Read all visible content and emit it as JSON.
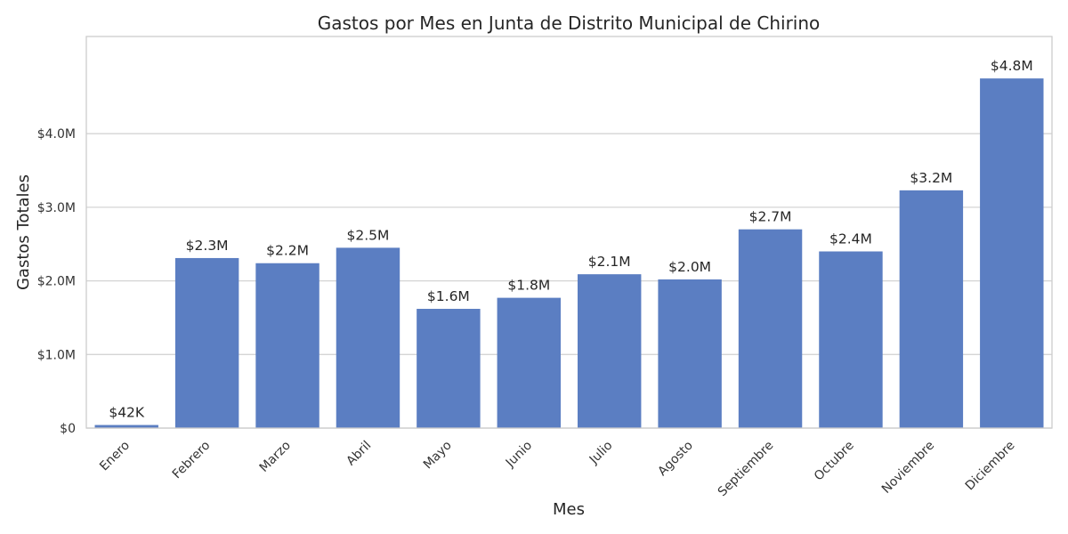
{
  "chart_data": {
    "type": "bar",
    "title": "Gastos por Mes en Junta de Distrito Municipal de Chirino",
    "xlabel": "Mes",
    "ylabel": "Gastos Totales",
    "categories": [
      "Enero",
      "Febrero",
      "Marzo",
      "Abril",
      "Mayo",
      "Junio",
      "Julio",
      "Agosto",
      "Septiembre",
      "Octubre",
      "Noviembre",
      "Diciembre"
    ],
    "values": [
      42000,
      2310000,
      2240000,
      2450000,
      1620000,
      1770000,
      2090000,
      2020000,
      2700000,
      2400000,
      3230000,
      4750000
    ],
    "value_labels": [
      "$42K",
      "$2.3M",
      "$2.2M",
      "$2.5M",
      "$1.6M",
      "$1.8M",
      "$2.1M",
      "$2.0M",
      "$2.7M",
      "$2.4M",
      "$3.2M",
      "$4.8M"
    ],
    "ylim": [
      0,
      5320000
    ],
    "yticks": [
      0,
      1000000,
      2000000,
      3000000,
      4000000
    ],
    "ytick_labels": [
      "$0",
      "$1.0M",
      "$2.0M",
      "$3.0M",
      "$4.0M"
    ],
    "grid": true,
    "bar_color": "#5b7ec2"
  }
}
